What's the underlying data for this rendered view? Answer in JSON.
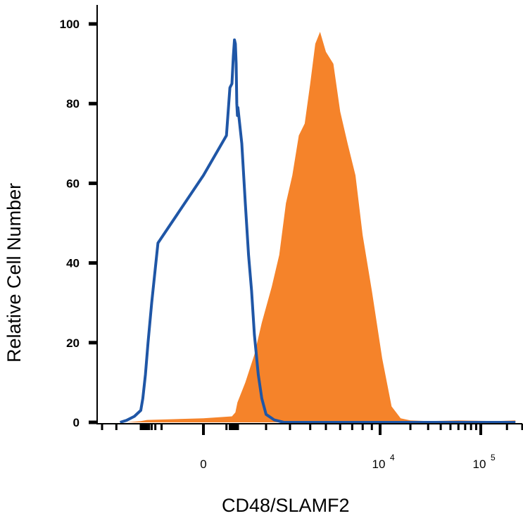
{
  "chart_data": {
    "type": "area",
    "xlabel": "CD48/SLAMF2",
    "ylabel": "Relative Cell Number",
    "x_scale": "biexponential",
    "ylim": [
      0,
      100
    ],
    "y_ticks": [
      0,
      20,
      40,
      60,
      80,
      100
    ],
    "x_ticks": [
      {
        "base": "0",
        "exp": ""
      },
      {
        "base": "10",
        "exp": "4"
      },
      {
        "base": "10",
        "exp": "5"
      }
    ],
    "series": [
      {
        "style": "outline",
        "color": "#1f56a6",
        "x": [
          -1800,
          -1500,
          -1200,
          -1000,
          -800,
          -600,
          -450,
          -300,
          -150,
          0,
          100,
          200,
          300,
          400,
          500,
          600,
          700,
          800,
          900,
          1000,
          1100,
          1200,
          1300,
          1400,
          1500,
          1650,
          1800,
          2000,
          2300,
          2700,
          3500,
          6000,
          20000,
          80000,
          250000
        ],
        "y": [
          0,
          0.5,
          1.5,
          3,
          6,
          12,
          20,
          30,
          45,
          62,
          72,
          84,
          85,
          92,
          96,
          95,
          90,
          80,
          77,
          79,
          70,
          55,
          42,
          33,
          22,
          12,
          6,
          2,
          0.6,
          0,
          0,
          0,
          0,
          0,
          0
        ]
      },
      {
        "style": "filled",
        "color": "#f5832a",
        "x": [
          -1500,
          -1000,
          -500,
          0,
          300,
          600,
          900,
          1200,
          1500,
          1800,
          2200,
          2500,
          2800,
          3100,
          3400,
          3700,
          4000,
          4300,
          4600,
          5000,
          5500,
          6000,
          6600,
          7300,
          8000,
          9000,
          10500,
          13000,
          16000,
          20000,
          30000,
          60000,
          150000,
          250000
        ],
        "y": [
          0,
          0.3,
          0.6,
          1,
          1.5,
          2.5,
          5,
          10,
          17,
          25,
          34,
          42,
          55,
          62,
          72,
          75,
          85,
          95,
          98,
          93,
          90,
          78,
          70,
          62,
          47,
          33,
          16,
          4,
          1,
          0.5,
          0.3,
          0.5,
          0.3,
          0.5
        ]
      }
    ]
  }
}
